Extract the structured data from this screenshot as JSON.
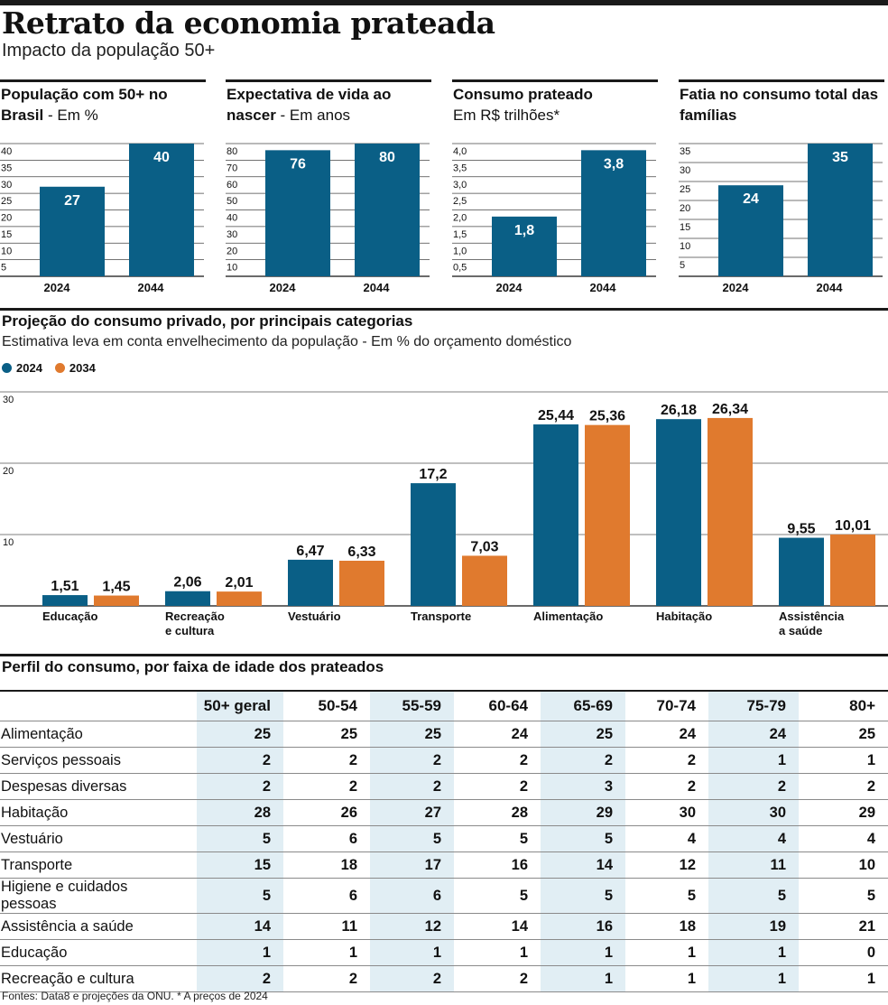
{
  "title": "Retrato da economia prateada",
  "subtitle": "Impacto da população 50+",
  "colors": {
    "blue": "#0a5f86",
    "orange": "#e07a2e",
    "shade": "#e1eef4"
  },
  "panels": [
    {
      "title_bold": "População com 50+ no Brasil",
      "title_rest": " - Em %",
      "chart_data": {
        "type": "bar",
        "categories": [
          "2024",
          "2044"
        ],
        "values": [
          27,
          40
        ],
        "labels": [
          "27",
          "40"
        ],
        "ylim": [
          0,
          40
        ],
        "ticks": [
          5,
          10,
          15,
          20,
          25,
          30,
          35,
          40
        ],
        "tick_labels": [
          "5",
          "10",
          "15",
          "20",
          "25",
          "30",
          "35",
          "40"
        ]
      }
    },
    {
      "title_bold": "Expectativa de vida ao nascer",
      "title_rest": " - Em anos",
      "chart_data": {
        "type": "bar",
        "categories": [
          "2024",
          "2044"
        ],
        "values": [
          76,
          80
        ],
        "labels": [
          "76",
          "80"
        ],
        "ylim": [
          0,
          80
        ],
        "ticks": [
          10,
          20,
          30,
          40,
          50,
          60,
          70,
          80
        ],
        "tick_labels": [
          "10",
          "20",
          "30",
          "40",
          "50",
          "60",
          "70",
          "80"
        ]
      }
    },
    {
      "title_bold": "Consumo prateado",
      "title_rest": "Em R$ trilhões*",
      "title_rest_newline": true,
      "chart_data": {
        "type": "bar",
        "categories": [
          "2024",
          "2044"
        ],
        "values": [
          1.8,
          3.8
        ],
        "labels": [
          "1,8",
          "3,8"
        ],
        "ylim": [
          0,
          4
        ],
        "ticks": [
          0.5,
          1,
          1.5,
          2,
          2.5,
          3,
          3.5,
          4
        ],
        "tick_labels": [
          "0,5",
          "1,0",
          "1,5",
          "2,0",
          "2,5",
          "3,0",
          "3,5",
          "4,0"
        ]
      }
    },
    {
      "title_bold": "Fatia no consumo total das famílias",
      "title_rest": "",
      "chart_data": {
        "type": "bar",
        "categories": [
          "2024",
          "2044"
        ],
        "values": [
          24,
          35
        ],
        "labels": [
          "24",
          "35"
        ],
        "ylim": [
          0,
          35
        ],
        "ticks": [
          5,
          10,
          15,
          20,
          25,
          30,
          35
        ],
        "tick_labels": [
          "5",
          "10",
          "15",
          "20",
          "25",
          "30",
          "35"
        ]
      }
    }
  ],
  "section2": {
    "title": "Projeção do consumo privado, por principais categorias",
    "subtitle": "Estimativa leva em conta envelhecimento da população - Em % do orçamento doméstico",
    "legend": [
      "2024",
      "2034"
    ]
  },
  "chart_data": {
    "type": "bar",
    "categories": [
      "Educação",
      "Recreação e cultura",
      "Vestuário",
      "Transporte",
      "Alimentação",
      "Habitação",
      "Assistência a saúde"
    ],
    "category_lines": [
      [
        "Educação"
      ],
      [
        "Recreação",
        "e cultura"
      ],
      [
        "Vestuário"
      ],
      [
        "Transporte"
      ],
      [
        "Alimentação"
      ],
      [
        "Habitação"
      ],
      [
        "Assistência",
        "a saúde"
      ]
    ],
    "series": [
      {
        "name": "2024",
        "values": [
          1.51,
          2.06,
          6.47,
          17.2,
          25.44,
          26.18,
          9.55
        ],
        "labels": [
          "1,51",
          "2,06",
          "6,47",
          "17,2",
          "25,44",
          "26,18",
          "9,55"
        ]
      },
      {
        "name": "2034",
        "values": [
          1.45,
          2.01,
          6.33,
          7.03,
          25.36,
          26.34,
          10.01
        ],
        "labels": [
          "1,45",
          "2,01",
          "6,33",
          "7,03",
          "25,36",
          "26,34",
          "10,01"
        ]
      }
    ],
    "ylim": [
      0,
      30
    ],
    "ticks": [
      10,
      20,
      30
    ],
    "tick_labels": [
      "10",
      "20",
      "30"
    ]
  },
  "section3": {
    "title": "Perfil do consumo, por faixa de idade dos prateados",
    "columns": [
      "50+ geral",
      "50-54",
      "55-59",
      "60-64",
      "65-69",
      "70-74",
      "75-79",
      "80+"
    ],
    "rows": [
      {
        "label": "Alimentação",
        "values": [
          "25",
          "25",
          "25",
          "24",
          "25",
          "24",
          "24",
          "25"
        ]
      },
      {
        "label": "Serviços pessoais",
        "values": [
          "2",
          "2",
          "2",
          "2",
          "2",
          "2",
          "1",
          "1"
        ]
      },
      {
        "label": "Despesas diversas",
        "values": [
          "2",
          "2",
          "2",
          "2",
          "3",
          "2",
          "2",
          "2"
        ]
      },
      {
        "label": "Habitação",
        "values": [
          "28",
          "26",
          "27",
          "28",
          "29",
          "30",
          "30",
          "29"
        ]
      },
      {
        "label": "Vestuário",
        "values": [
          "5",
          "6",
          "5",
          "5",
          "5",
          "4",
          "4",
          "4"
        ]
      },
      {
        "label": "Transporte",
        "values": [
          "15",
          "18",
          "17",
          "16",
          "14",
          "12",
          "11",
          "10"
        ]
      },
      {
        "label": "Higiene e cuidados pessoas",
        "values": [
          "5",
          "6",
          "6",
          "5",
          "5",
          "5",
          "5",
          "5"
        ]
      },
      {
        "label": "Assistência a saúde",
        "values": [
          "14",
          "11",
          "12",
          "14",
          "16",
          "18",
          "19",
          "21"
        ]
      },
      {
        "label": "Educação",
        "values": [
          "1",
          "1",
          "1",
          "1",
          "1",
          "1",
          "1",
          "0"
        ]
      },
      {
        "label": "Recreação e cultura",
        "values": [
          "2",
          "2",
          "2",
          "2",
          "1",
          "1",
          "1",
          "1"
        ]
      }
    ]
  },
  "source": "Fontes: Data8 e projeções da ONU. * A preços de 2024"
}
